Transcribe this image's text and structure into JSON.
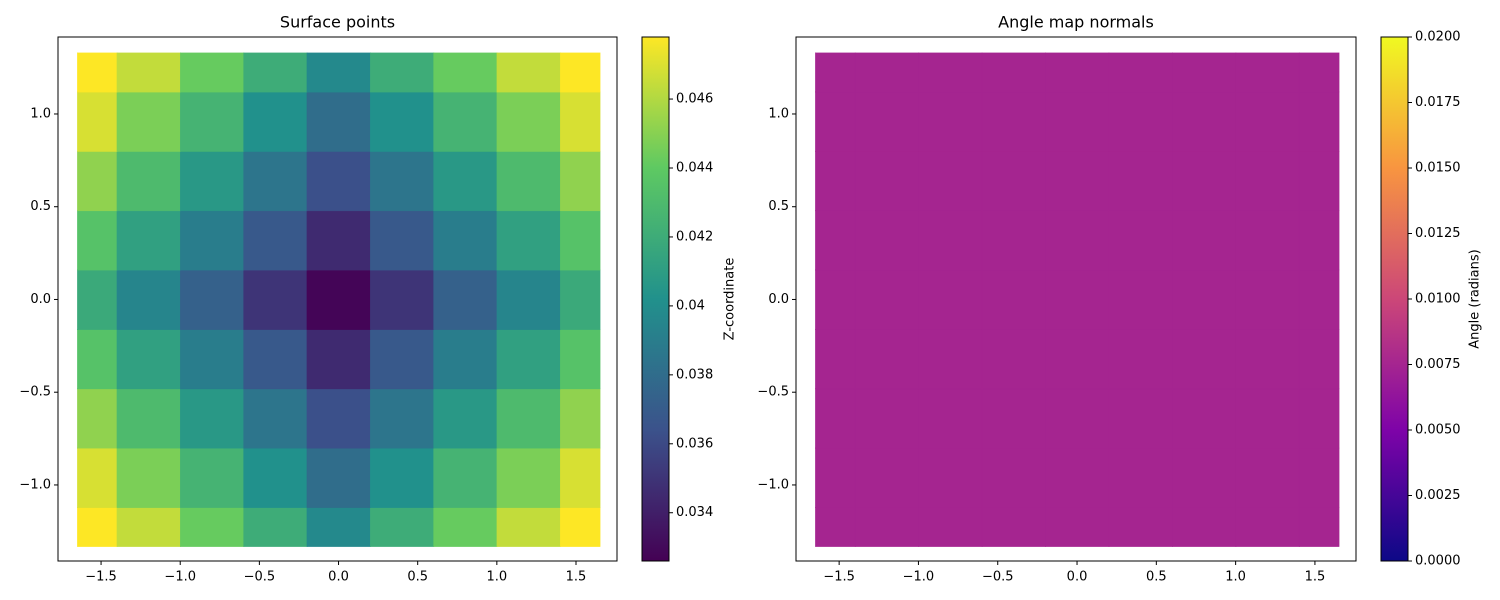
{
  "chart_data": [
    {
      "type": "heatmap",
      "title": "Surface points",
      "colormap": "viridis",
      "colorbar_label": "Z-coordinate",
      "x": [
        -1.6,
        -1.2,
        -0.8,
        -0.4,
        0,
        0.4,
        0.8,
        1.2,
        1.6
      ],
      "y": [
        -1.28,
        -0.96,
        -0.64,
        -0.32,
        0,
        0.32,
        0.64,
        0.96,
        1.28
      ],
      "z": [
        [
          0.0487,
          0.0464,
          0.0442,
          0.042,
          0.0397,
          0.042,
          0.0442,
          0.0464,
          0.0487
        ],
        [
          0.0469,
          0.0447,
          0.0425,
          0.0402,
          0.038,
          0.0402,
          0.0425,
          0.0447,
          0.0469
        ],
        [
          0.0452,
          0.043,
          0.0407,
          0.0385,
          0.0363,
          0.0385,
          0.0407,
          0.043,
          0.0452
        ],
        [
          0.0435,
          0.0412,
          0.039,
          0.0368,
          0.0345,
          0.0368,
          0.039,
          0.0412,
          0.0435
        ],
        [
          0.0418,
          0.0395,
          0.0373,
          0.035,
          0.0328,
          0.035,
          0.0373,
          0.0395,
          0.0418
        ],
        [
          0.0435,
          0.0412,
          0.039,
          0.0368,
          0.0345,
          0.0368,
          0.039,
          0.0412,
          0.0435
        ],
        [
          0.0452,
          0.043,
          0.0407,
          0.0385,
          0.0363,
          0.0385,
          0.0407,
          0.043,
          0.0452
        ],
        [
          0.0469,
          0.0447,
          0.0425,
          0.0402,
          0.038,
          0.0402,
          0.0425,
          0.0447,
          0.0469
        ],
        [
          0.0487,
          0.0464,
          0.0442,
          0.042,
          0.0397,
          0.042,
          0.0442,
          0.0464,
          0.0487
        ]
      ],
      "xlim": [
        -1.772,
        1.759
      ],
      "ylim": [
        -1.41,
        1.415
      ],
      "clim": [
        0.0326,
        0.0478
      ],
      "xticks": [
        {
          "value": -1.5,
          "label": "−1.5"
        },
        {
          "value": -1,
          "label": "−1.0"
        },
        {
          "value": -0.5,
          "label": "−0.5"
        },
        {
          "value": 0,
          "label": "0.0"
        },
        0.5,
        {
          "value": 1,
          "label": "1.0"
        },
        1.5
      ],
      "yticks": [
        {
          "value": -1,
          "label": "−1.0"
        },
        {
          "value": -0.5,
          "label": "−0.5"
        },
        {
          "value": 0,
          "label": "0.0"
        },
        0.5,
        {
          "value": 1,
          "label": "1.0"
        }
      ],
      "cticks": [
        0.034,
        0.036,
        0.038,
        0.04,
        0.042,
        0.044,
        0.046
      ]
    },
    {
      "type": "heatmap",
      "title": "Angle map normals",
      "colormap": "plasma",
      "colorbar_label": "Angle (radians)",
      "x": [
        -1.6,
        -1.2,
        -0.8,
        -0.4,
        0,
        0.4,
        0.8,
        1.2,
        1.6
      ],
      "y": [
        -1.28,
        -0.96,
        -0.64,
        -0.32,
        0,
        0.32,
        0.64,
        0.96,
        1.28
      ],
      "z": [
        [
          0.0075,
          0.0075,
          0.0075,
          0.0075,
          0.0075,
          0.0075,
          0.0075,
          0.0075,
          0.0075
        ],
        [
          0.0075,
          0.0075,
          0.0075,
          0.0075,
          0.0075,
          0.0075,
          0.0075,
          0.0075,
          0.0075
        ],
        [
          0.0075,
          0.0075,
          0.0075,
          0.0075,
          0.0075,
          0.0075,
          0.0075,
          0.0075,
          0.0075
        ],
        [
          0.0075,
          0.0075,
          0.0075,
          0.0075,
          0.0075,
          0.0075,
          0.0075,
          0.0075,
          0.0075
        ],
        [
          0.0075,
          0.0075,
          0.0075,
          0.0075,
          0.0075,
          0.0075,
          0.0075,
          0.0075,
          0.0075
        ],
        [
          0.0075,
          0.0075,
          0.0075,
          0.0075,
          0.0075,
          0.0075,
          0.0075,
          0.0075,
          0.0075
        ],
        [
          0.0075,
          0.0075,
          0.0075,
          0.0075,
          0.0075,
          0.0075,
          0.0075,
          0.0075,
          0.0075
        ],
        [
          0.0075,
          0.0075,
          0.0075,
          0.0075,
          0.0075,
          0.0075,
          0.0075,
          0.0075,
          0.0075
        ],
        [
          0.0075,
          0.0075,
          0.0075,
          0.0075,
          0.0075,
          0.0075,
          0.0075,
          0.0075,
          0.0075
        ]
      ],
      "xlim": [
        -1.772,
        1.759
      ],
      "ylim": [
        -1.41,
        1.415
      ],
      "clim": [
        0,
        0.02
      ],
      "xticks": [
        {
          "value": -1.5,
          "label": "−1.5"
        },
        {
          "value": -1,
          "label": "−1.0"
        },
        {
          "value": -0.5,
          "label": "−0.5"
        },
        {
          "value": 0,
          "label": "0.0"
        },
        0.5,
        {
          "value": 1,
          "label": "1.0"
        },
        1.5
      ],
      "yticks": [
        {
          "value": -1,
          "label": "−1.0"
        },
        {
          "value": -0.5,
          "label": "−0.5"
        },
        {
          "value": 0,
          "label": "0.0"
        },
        0.5,
        {
          "value": 1,
          "label": "1.0"
        }
      ],
      "cticks": [
        {
          "value": 0,
          "label": "0.0000"
        },
        {
          "value": 0.0025,
          "label": "0.0025"
        },
        {
          "value": 0.005,
          "label": "0.0050"
        },
        {
          "value": 0.0075,
          "label": "0.0075"
        },
        {
          "value": 0.01,
          "label": "0.0100"
        },
        {
          "value": 0.0125,
          "label": "0.0125"
        },
        {
          "value": 0.015,
          "label": "0.0150"
        },
        {
          "value": 0.0175,
          "label": "0.0175"
        },
        {
          "value": 0.02,
          "label": "0.0200"
        }
      ]
    }
  ]
}
